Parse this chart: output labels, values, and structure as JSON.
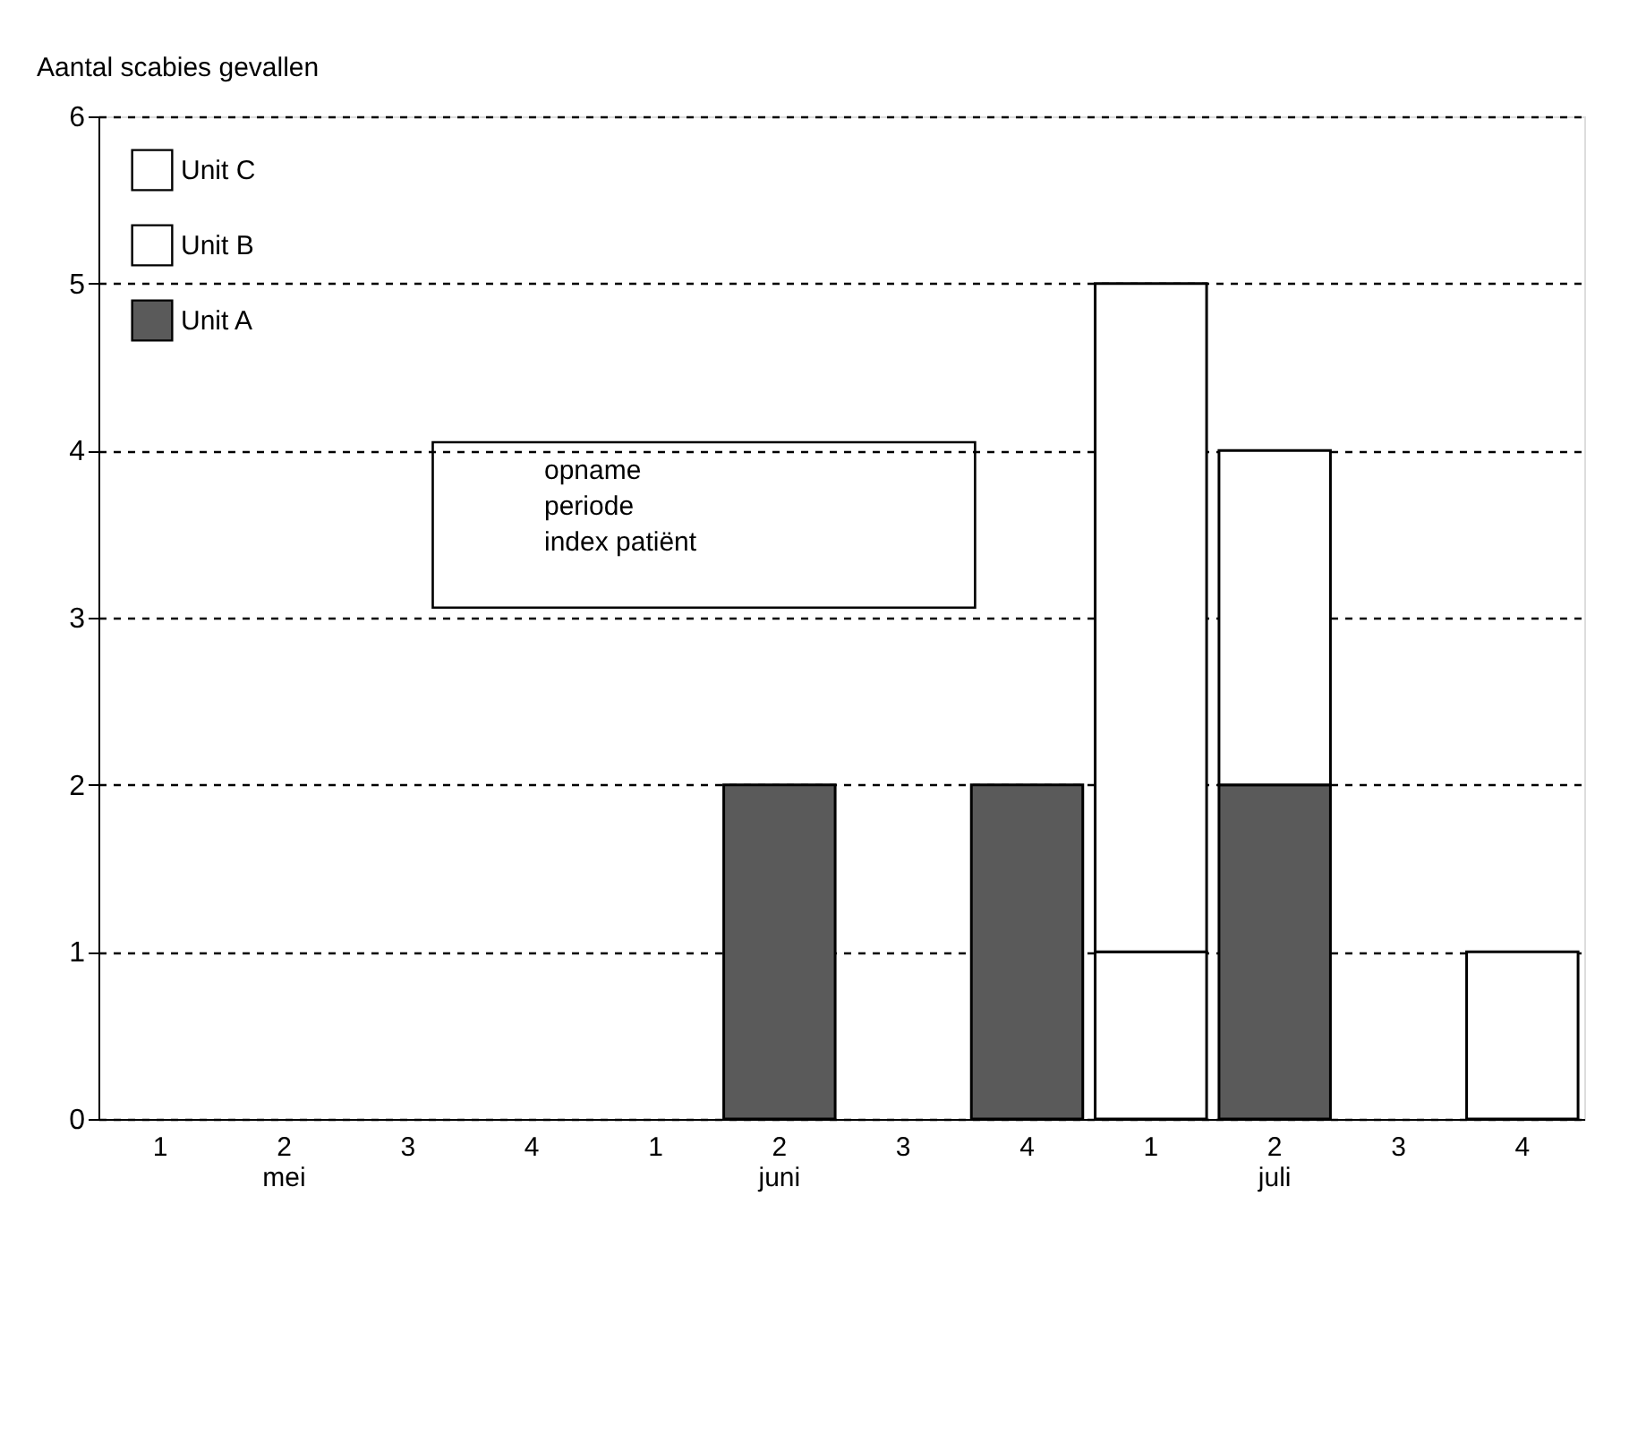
{
  "chart_data": {
    "type": "bar",
    "stacked": true,
    "ylabel": "Aantal scabies gevallen",
    "categories": [
      "1",
      "2\nmei",
      "3",
      "4",
      "1",
      "2\njuni",
      "3",
      "4",
      "1",
      "2\njuli",
      "3",
      "4"
    ],
    "series": [
      {
        "name": "Unit A",
        "color": "#5a5a5a",
        "values": [
          null,
          null,
          null,
          null,
          null,
          2,
          null,
          2,
          null,
          2,
          null,
          null
        ]
      },
      {
        "name": "Unit B",
        "color": "#ffffff",
        "values": [
          null,
          null,
          null,
          null,
          null,
          null,
          null,
          null,
          1,
          2,
          null,
          1
        ]
      },
      {
        "name": "Unit C",
        "color": "#ffffff",
        "values": [
          null,
          null,
          null,
          null,
          null,
          null,
          null,
          null,
          4,
          null,
          null,
          null
        ]
      }
    ],
    "ylim": [
      0,
      6
    ],
    "yticks": [
      0,
      1,
      2,
      3,
      4,
      5,
      6
    ],
    "grid": "y",
    "legend": "top left",
    "annotations": [
      "opname\nperiode\nindex patiënt"
    ]
  }
}
